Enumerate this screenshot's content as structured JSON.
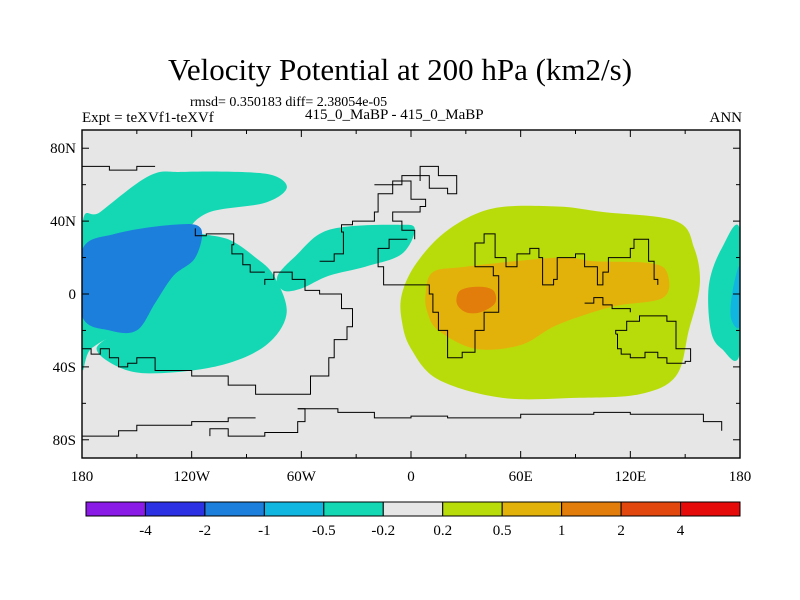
{
  "chart_data": {
    "type": "heatmap",
    "title": "Velocity Potential at 200 hPa (km2/s)",
    "stats_text": "rmsd= 0.350183 diff= 2.38054e-05",
    "left_label": "Expt = teXVf1-teXVf",
    "center_label": "415_0_MaBP - 415_0_MaBP",
    "right_label": "ANN",
    "x_ticks": [
      {
        "value": -180,
        "label": "180"
      },
      {
        "value": -120,
        "label": "120W"
      },
      {
        "value": -60,
        "label": "60W"
      },
      {
        "value": 0,
        "label": "0"
      },
      {
        "value": 60,
        "label": "60E"
      },
      {
        "value": 120,
        "label": "120E"
      },
      {
        "value": 180,
        "label": "180"
      }
    ],
    "y_ticks": [
      {
        "value": 80,
        "label": "80N"
      },
      {
        "value": 40,
        "label": "40N"
      },
      {
        "value": 0,
        "label": "0"
      },
      {
        "value": -40,
        "label": "40S"
      },
      {
        "value": -80,
        "label": "80S"
      }
    ],
    "xlim": [
      -180,
      180
    ],
    "ylim": [
      -90,
      90
    ],
    "colorbar": {
      "labels": [
        "-4",
        "-2",
        "-1",
        "-0.5",
        "-0.2",
        "0.2",
        "0.5",
        "1",
        "2",
        "4"
      ],
      "colors": [
        "#8a1ae6",
        "#2c31e3",
        "#1d7fdc",
        "#10b6e0",
        "#14d8b4",
        "#e6e6e6",
        "#b8dc0a",
        "#e3b20a",
        "#e27d0c",
        "#e2480e",
        "#e60b0b"
      ]
    },
    "colors": {
      "neutral": "#e6e6e6",
      "neg_weak": "#14d8b4",
      "neg_mid": "#10b6e0",
      "neg_strong": "#1d7fdc",
      "pos_weak": "#b8dc0a",
      "pos_mid": "#e3b20a",
      "pos_strong": "#e27d0c"
    },
    "regions": [
      {
        "level": "neg_weak",
        "points": [
          [
            -155,
            -18
          ],
          [
            -175,
            -30
          ],
          [
            -180,
            -38
          ],
          [
            -180,
            37
          ],
          [
            -170,
            45
          ],
          [
            -143,
            65
          ],
          [
            -125,
            67
          ],
          [
            -95,
            67
          ],
          [
            -75,
            65
          ],
          [
            -68,
            58
          ],
          [
            -80,
            50
          ],
          [
            -110,
            45
          ],
          [
            -120,
            35
          ],
          [
            -100,
            30
          ],
          [
            -85,
            20
          ],
          [
            -75,
            10
          ],
          [
            -68,
            -10
          ],
          [
            -78,
            -27
          ],
          [
            -100,
            -38
          ],
          [
            -130,
            -43
          ],
          [
            -155,
            -42
          ],
          [
            -172,
            -30
          ]
        ]
      },
      {
        "level": "neg_weak",
        "points": [
          [
            -73,
            10
          ],
          [
            -62,
            22
          ],
          [
            -50,
            33
          ],
          [
            -35,
            37
          ],
          [
            -8,
            38
          ],
          [
            2,
            36
          ],
          [
            -5,
            22
          ],
          [
            -25,
            15
          ],
          [
            -45,
            10
          ],
          [
            -60,
            3
          ],
          [
            -70,
            2
          ]
        ]
      },
      {
        "level": "neg_strong",
        "points": [
          [
            -180,
            -12
          ],
          [
            -180,
            24
          ],
          [
            -162,
            33
          ],
          [
            -130,
            38
          ],
          [
            -115,
            36
          ],
          [
            -118,
            20
          ],
          [
            -130,
            10
          ],
          [
            -140,
            -5
          ],
          [
            -150,
            -20
          ],
          [
            -165,
            -20
          ]
        ]
      },
      {
        "level": "neg_weak",
        "points": [
          [
            180,
            35
          ],
          [
            170,
            25
          ],
          [
            163,
            5
          ],
          [
            164,
            -20
          ],
          [
            170,
            -30
          ],
          [
            180,
            -32
          ]
        ]
      },
      {
        "level": "neg_mid",
        "points": [
          [
            180,
            15
          ],
          [
            176,
            2
          ],
          [
            175,
            -13
          ],
          [
            180,
            -17
          ]
        ]
      },
      {
        "level": "pos_weak",
        "points": [
          [
            -5,
            0
          ],
          [
            3,
            17
          ],
          [
            20,
            35
          ],
          [
            45,
            47
          ],
          [
            80,
            48
          ],
          [
            105,
            45
          ],
          [
            145,
            40
          ],
          [
            155,
            25
          ],
          [
            158,
            5
          ],
          [
            152,
            -20
          ],
          [
            145,
            -45
          ],
          [
            125,
            -55
          ],
          [
            90,
            -57
          ],
          [
            50,
            -57
          ],
          [
            15,
            -47
          ],
          [
            0,
            -30
          ],
          [
            -5,
            -15
          ]
        ]
      },
      {
        "level": "pos_mid",
        "points": [
          [
            8,
            0
          ],
          [
            12,
            12
          ],
          [
            30,
            15
          ],
          [
            80,
            20
          ],
          [
            100,
            18
          ],
          [
            130,
            17
          ],
          [
            140,
            12
          ],
          [
            138,
            -2
          ],
          [
            110,
            -7
          ],
          [
            80,
            -17
          ],
          [
            60,
            -28
          ],
          [
            35,
            -30
          ],
          [
            15,
            -20
          ],
          [
            9,
            -10
          ]
        ]
      },
      {
        "level": "pos_strong",
        "points": [
          [
            25,
            -5
          ],
          [
            27,
            2
          ],
          [
            37,
            4
          ],
          [
            45,
            2
          ],
          [
            46,
            -5
          ],
          [
            38,
            -10
          ],
          [
            30,
            -10
          ]
        ]
      }
    ],
    "coastlines": [
      [
        [
          -180,
          -30
        ],
        [
          -175,
          -33
        ],
        [
          -170,
          -30
        ],
        [
          -165,
          -35
        ],
        [
          -160,
          -40
        ],
        [
          -155,
          -38
        ],
        [
          -150,
          -35
        ],
        [
          -140,
          -42
        ],
        [
          -120,
          -45
        ],
        [
          -100,
          -50
        ],
        [
          -85,
          -55
        ],
        [
          -75,
          -55
        ],
        [
          -55,
          -45
        ],
        [
          -45,
          -35
        ],
        [
          -42,
          -25
        ],
        [
          -35,
          -18
        ],
        [
          -32,
          -8
        ],
        [
          -38,
          0
        ],
        [
          -50,
          2
        ],
        [
          -58,
          8
        ],
        [
          -65,
          12
        ],
        [
          -75,
          8
        ],
        [
          -80,
          5
        ]
      ],
      [
        [
          -80,
          12
        ],
        [
          -88,
          16
        ],
        [
          -92,
          22
        ],
        [
          -98,
          27
        ],
        [
          -97,
          33
        ],
        [
          -112,
          32
        ],
        [
          -118,
          36
        ]
      ],
      [
        [
          -50,
          18
        ],
        [
          -42,
          22
        ],
        [
          -37,
          34
        ],
        [
          -38,
          38
        ],
        [
          -32,
          40
        ],
        [
          -20,
          45
        ],
        [
          -18,
          55
        ],
        [
          -10,
          62
        ],
        [
          0,
          52
        ],
        [
          8,
          48
        ],
        [
          5,
          45
        ],
        [
          -10,
          40
        ],
        [
          -5,
          35
        ],
        [
          2,
          30
        ]
      ],
      [
        [
          -2,
          30
        ],
        [
          -12,
          25
        ],
        [
          -18,
          15
        ],
        [
          -15,
          5
        ],
        [
          0,
          5
        ],
        [
          10,
          0
        ],
        [
          12,
          -10
        ],
        [
          15,
          -20
        ],
        [
          20,
          -35
        ],
        [
          28,
          -32
        ],
        [
          35,
          -20
        ],
        [
          40,
          -10
        ],
        [
          48,
          10
        ],
        [
          45,
          15
        ],
        [
          38,
          15
        ],
        [
          35,
          28
        ],
        [
          40,
          33
        ],
        [
          46,
          20
        ],
        [
          52,
          15
        ],
        [
          58,
          22
        ],
        [
          65,
          25
        ],
        [
          70,
          20
        ],
        [
          72,
          5
        ],
        [
          78,
          8
        ],
        [
          80,
          20
        ],
        [
          90,
          22
        ],
        [
          95,
          15
        ],
        [
          102,
          5
        ],
        [
          105,
          12
        ],
        [
          108,
          20
        ],
        [
          120,
          25
        ],
        [
          122,
          30
        ],
        [
          130,
          18
        ],
        [
          133,
          8
        ],
        [
          135,
          5
        ]
      ],
      [
        [
          112,
          -22
        ],
        [
          113,
          -30
        ],
        [
          115,
          -33
        ],
        [
          120,
          -35
        ],
        [
          128,
          -32
        ],
        [
          135,
          -35
        ],
        [
          140,
          -38
        ],
        [
          150,
          -37
        ],
        [
          153,
          -30
        ],
        [
          145,
          -15
        ],
        [
          140,
          -12
        ],
        [
          130,
          -12
        ],
        [
          125,
          -15
        ],
        [
          118,
          -20
        ],
        [
          112,
          -22
        ]
      ],
      [
        [
          -62,
          -63
        ],
        [
          -40,
          -65
        ],
        [
          -20,
          -68
        ],
        [
          0,
          -67
        ],
        [
          20,
          -68
        ],
        [
          40,
          -68
        ],
        [
          60,
          -66
        ],
        [
          80,
          -66
        ],
        [
          100,
          -65
        ],
        [
          120,
          -66
        ],
        [
          140,
          -66
        ],
        [
          160,
          -70
        ],
        [
          170,
          -75
        ]
      ],
      [
        [
          -85,
          -68
        ],
        [
          -100,
          -70
        ],
        [
          -120,
          -72
        ],
        [
          -140,
          -72
        ],
        [
          -150,
          -75
        ],
        [
          -160,
          -78
        ],
        [
          -180,
          -78
        ]
      ],
      [
        [
          -62,
          -63
        ],
        [
          -58,
          -70
        ],
        [
          -62,
          -76
        ],
        [
          -80,
          -78
        ],
        [
          -100,
          -74
        ],
        [
          -110,
          -78
        ]
      ],
      [
        [
          -20,
          60
        ],
        [
          -5,
          65
        ],
        [
          10,
          58
        ],
        [
          20,
          55
        ],
        [
          25,
          65
        ],
        [
          15,
          70
        ],
        [
          5,
          62
        ]
      ],
      [
        [
          95,
          -5
        ],
        [
          100,
          -2
        ],
        [
          105,
          -6
        ],
        [
          110,
          -8
        ],
        [
          115,
          -8
        ],
        [
          120,
          -10
        ]
      ],
      [
        [
          -180,
          70
        ],
        [
          -165,
          68
        ],
        [
          -150,
          70
        ],
        [
          -140,
          70
        ]
      ]
    ]
  }
}
